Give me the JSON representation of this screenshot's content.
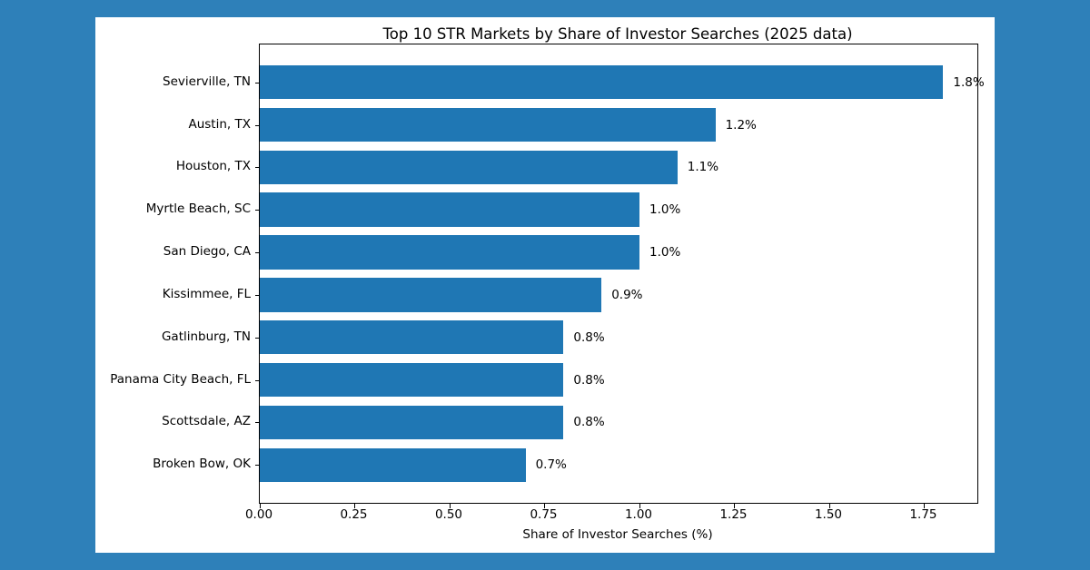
{
  "page": {
    "background_color": "#2e80b9",
    "card_background_color": "#ffffff"
  },
  "chart_data": {
    "type": "bar",
    "orientation": "horizontal",
    "title": "Top 10 STR Markets by Share of Investor Searches (2025 data)",
    "xlabel": "Share of Investor Searches (%)",
    "ylabel": "",
    "categories": [
      "Sevierville, TN",
      "Austin, TX",
      "Houston, TX",
      "Myrtle Beach, SC",
      "San Diego, CA",
      "Kissimmee, FL",
      "Gatlinburg, TN",
      "Panama City Beach, FL",
      "Scottsdale, AZ",
      "Broken Bow, OK"
    ],
    "values": [
      1.8,
      1.2,
      1.1,
      1.0,
      1.0,
      0.9,
      0.8,
      0.8,
      0.8,
      0.7
    ],
    "value_labels": [
      "1.8%",
      "1.2%",
      "1.1%",
      "1.0%",
      "1.0%",
      "0.9%",
      "0.8%",
      "0.8%",
      "0.8%",
      "0.7%"
    ],
    "x_ticks": [
      0.0,
      0.25,
      0.5,
      0.75,
      1.0,
      1.25,
      1.5,
      1.75
    ],
    "x_tick_labels": [
      "0.00",
      "0.25",
      "0.50",
      "0.75",
      "1.00",
      "1.25",
      "1.50",
      "1.75"
    ],
    "xlim": [
      0,
      1.89
    ],
    "bar_color": "#1f77b4",
    "text_color": "#000000",
    "grid": false,
    "legend": null
  }
}
